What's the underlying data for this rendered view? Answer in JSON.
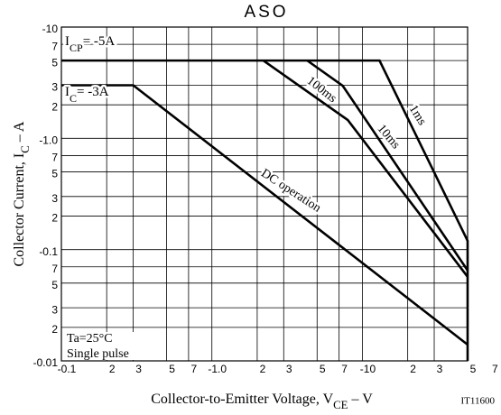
{
  "chart_data": {
    "type": "line",
    "title": "ASO",
    "x_label": [
      "Collector-to-Emitter Voltage, V",
      "CE",
      " – V"
    ],
    "y_label": [
      "Collector Current, I",
      "C",
      " – A"
    ],
    "code": "IT11600",
    "log_x": true,
    "log_y": true,
    "grid": true,
    "xlim": [
      -0.1,
      -50
    ],
    "ylim": [
      -0.01,
      -10
    ],
    "xticks": [
      -0.1,
      {
        "value": -0.2,
        "label": "2"
      },
      {
        "value": -0.3,
        "label": "3"
      },
      {
        "value": -0.5,
        "label": "5"
      },
      {
        "value": -0.7,
        "label": "7"
      },
      {
        "value": -1,
        "label": "-1.0"
      },
      {
        "value": -2,
        "label": "2"
      },
      {
        "value": -3,
        "label": "3"
      },
      {
        "value": -5,
        "label": "5"
      },
      {
        "value": -7,
        "label": "7"
      },
      -10,
      {
        "value": -20,
        "label": "2"
      },
      {
        "value": -30,
        "label": "3"
      },
      {
        "value": -50,
        "label": "5"
      },
      {
        "value": -70,
        "label": "7"
      }
    ],
    "yticks": [
      -0.01,
      {
        "value": -0.02,
        "label": "2"
      },
      {
        "value": -0.03,
        "label": "3"
      },
      {
        "value": -0.05,
        "label": "5"
      },
      {
        "value": -0.07,
        "label": "7"
      },
      -0.1,
      {
        "value": -0.2,
        "label": "2"
      },
      {
        "value": -0.3,
        "label": "3"
      },
      {
        "value": -0.5,
        "label": "5"
      },
      {
        "value": -0.7,
        "label": "7"
      },
      {
        "value": -1,
        "label": "-1.0"
      },
      {
        "value": -2,
        "label": "2"
      },
      {
        "value": -3,
        "label": "3"
      },
      {
        "value": -5,
        "label": "5"
      },
      {
        "value": -7,
        "label": "7"
      },
      -10
    ],
    "series": [
      {
        "name": "1ms",
        "color": "#000000",
        "x": [
          -0.1,
          -13,
          -50,
          -50
        ],
        "values": [
          -5,
          -5,
          -0.12,
          -0.01
        ]
      },
      {
        "name": "10ms",
        "color": "#000000",
        "x": [
          -4.3,
          -7.4,
          -50
        ],
        "values": [
          -5,
          -2.97,
          -0.065
        ]
      },
      {
        "name": "100ms",
        "color": "#000000",
        "x": [
          -2.2,
          -8,
          -50
        ],
        "values": [
          -5,
          -1.46,
          -0.057
        ]
      },
      {
        "name": "DC operation",
        "color": "#000000",
        "x": [
          -0.1,
          -0.3,
          -50
        ],
        "values": [
          -3,
          -3,
          -0.014
        ]
      }
    ],
    "annotations": [
      [
        "I",
        "CP",
        "= -5A"
      ],
      [
        "I",
        "C",
        "= -3A"
      ]
    ],
    "conditions": [
      "Ta=25°C",
      "Single pulse"
    ]
  }
}
